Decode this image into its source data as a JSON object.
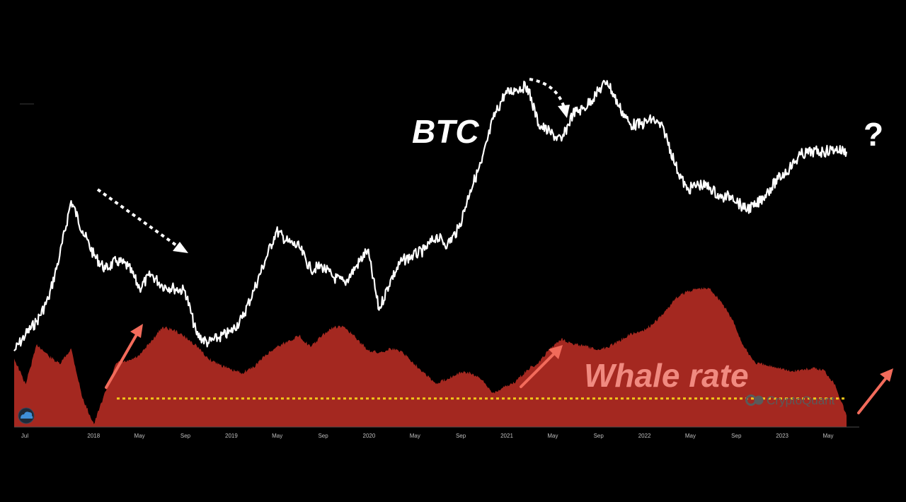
{
  "chart_data": {
    "type": "line",
    "title": "",
    "xlabel": "",
    "ylabel": "",
    "x_tick_labels": [
      "Jul",
      "2018",
      "May",
      "Sep",
      "2019",
      "May",
      "Sep",
      "2020",
      "May",
      "Sep",
      "2021",
      "May",
      "Sep",
      "2022",
      "May",
      "Sep",
      "2023",
      "May"
    ],
    "grid": false,
    "legend": "none",
    "annotations": {
      "btc_label": "BTC",
      "whale_label": "Whale rate",
      "question": "?",
      "watermark": "CryptoQuant"
    },
    "series": [
      {
        "name": "BTC",
        "color": "#ffffff",
        "points": [
          [
            "2017-07",
            0.03
          ],
          [
            "2017-08",
            0.09
          ],
          [
            "2017-09",
            0.14
          ],
          [
            "2017-10",
            0.22
          ],
          [
            "2017-11",
            0.38
          ],
          [
            "2017-12",
            0.58
          ],
          [
            "2018-01",
            0.47
          ],
          [
            "2018-02",
            0.38
          ],
          [
            "2018-03",
            0.33
          ],
          [
            "2018-04",
            0.36
          ],
          [
            "2018-05",
            0.34
          ],
          [
            "2018-06",
            0.26
          ],
          [
            "2018-07",
            0.31
          ],
          [
            "2018-08",
            0.27
          ],
          [
            "2018-09",
            0.26
          ],
          [
            "2018-10",
            0.25
          ],
          [
            "2018-11",
            0.09
          ],
          [
            "2018-12",
            0.06
          ],
          [
            "2019-01",
            0.08
          ],
          [
            "2019-02",
            0.1
          ],
          [
            "2019-03",
            0.15
          ],
          [
            "2019-04",
            0.25
          ],
          [
            "2019-05",
            0.36
          ],
          [
            "2019-06",
            0.47
          ],
          [
            "2019-07",
            0.43
          ],
          [
            "2019-08",
            0.41
          ],
          [
            "2019-09",
            0.33
          ],
          [
            "2019-10",
            0.34
          ],
          [
            "2019-11",
            0.3
          ],
          [
            "2019-12",
            0.28
          ],
          [
            "2020-01",
            0.34
          ],
          [
            "2020-02",
            0.4
          ],
          [
            "2020-03",
            0.18
          ],
          [
            "2020-04",
            0.29
          ],
          [
            "2020-05",
            0.36
          ],
          [
            "2020-06",
            0.38
          ],
          [
            "2020-07",
            0.4
          ],
          [
            "2020-08",
            0.45
          ],
          [
            "2020-09",
            0.42
          ],
          [
            "2020-10",
            0.48
          ],
          [
            "2020-11",
            0.62
          ],
          [
            "2020-12",
            0.72
          ],
          [
            "2021-01",
            0.88
          ],
          [
            "2021-02",
            0.97
          ],
          [
            "2021-03",
            0.99
          ],
          [
            "2021-04",
            1.0
          ],
          [
            "2021-05",
            0.86
          ],
          [
            "2021-06",
            0.83
          ],
          [
            "2021-07",
            0.8
          ],
          [
            "2021-08",
            0.9
          ],
          [
            "2021-09",
            0.92
          ],
          [
            "2021-10",
            0.97
          ],
          [
            "2021-11",
            1.02
          ],
          [
            "2021-12",
            0.93
          ],
          [
            "2022-01",
            0.86
          ],
          [
            "2022-02",
            0.86
          ],
          [
            "2022-03",
            0.88
          ],
          [
            "2022-04",
            0.84
          ],
          [
            "2022-05",
            0.71
          ],
          [
            "2022-06",
            0.62
          ],
          [
            "2022-07",
            0.64
          ],
          [
            "2022-08",
            0.63
          ],
          [
            "2022-09",
            0.59
          ],
          [
            "2022-10",
            0.6
          ],
          [
            "2022-11",
            0.55
          ],
          [
            "2022-12",
            0.56
          ],
          [
            "2023-01",
            0.61
          ],
          [
            "2023-02",
            0.66
          ],
          [
            "2023-03",
            0.7
          ],
          [
            "2023-04",
            0.75
          ],
          [
            "2023-05",
            0.76
          ],
          [
            "2023-06",
            0.76
          ],
          [
            "2023-07",
            0.77
          ],
          [
            "2023-08",
            0.76
          ]
        ]
      },
      {
        "name": "Whale rate",
        "color": "#a42820",
        "points": [
          [
            "2017-07",
            0.48
          ],
          [
            "2017-08",
            0.3
          ],
          [
            "2017-09",
            0.58
          ],
          [
            "2017-10",
            0.5
          ],
          [
            "2017-11",
            0.44
          ],
          [
            "2017-12",
            0.55
          ],
          [
            "2018-01",
            0.2
          ],
          [
            "2018-02",
            0.02
          ],
          [
            "2018-03",
            0.25
          ],
          [
            "2018-04",
            0.45
          ],
          [
            "2018-05",
            0.46
          ],
          [
            "2018-06",
            0.5
          ],
          [
            "2018-07",
            0.6
          ],
          [
            "2018-08",
            0.7
          ],
          [
            "2018-09",
            0.68
          ],
          [
            "2018-10",
            0.63
          ],
          [
            "2018-11",
            0.57
          ],
          [
            "2018-12",
            0.48
          ],
          [
            "2019-01",
            0.44
          ],
          [
            "2019-02",
            0.4
          ],
          [
            "2019-03",
            0.38
          ],
          [
            "2019-04",
            0.42
          ],
          [
            "2019-05",
            0.5
          ],
          [
            "2019-06",
            0.56
          ],
          [
            "2019-07",
            0.6
          ],
          [
            "2019-08",
            0.64
          ],
          [
            "2019-09",
            0.56
          ],
          [
            "2019-10",
            0.64
          ],
          [
            "2019-11",
            0.7
          ],
          [
            "2019-12",
            0.7
          ],
          [
            "2020-01",
            0.62
          ],
          [
            "2020-02",
            0.54
          ],
          [
            "2020-03",
            0.52
          ],
          [
            "2020-04",
            0.55
          ],
          [
            "2020-05",
            0.53
          ],
          [
            "2020-06",
            0.45
          ],
          [
            "2020-07",
            0.38
          ],
          [
            "2020-08",
            0.3
          ],
          [
            "2020-09",
            0.34
          ],
          [
            "2020-10",
            0.38
          ],
          [
            "2020-11",
            0.38
          ],
          [
            "2020-12",
            0.33
          ],
          [
            "2021-01",
            0.24
          ],
          [
            "2021-02",
            0.28
          ],
          [
            "2021-03",
            0.32
          ],
          [
            "2021-04",
            0.4
          ],
          [
            "2021-05",
            0.45
          ],
          [
            "2021-06",
            0.55
          ],
          [
            "2021-07",
            0.62
          ],
          [
            "2021-08",
            0.58
          ],
          [
            "2021-09",
            0.57
          ],
          [
            "2021-10",
            0.54
          ],
          [
            "2021-11",
            0.56
          ],
          [
            "2021-12",
            0.6
          ],
          [
            "2022-01",
            0.65
          ],
          [
            "2022-02",
            0.67
          ],
          [
            "2022-03",
            0.72
          ],
          [
            "2022-04",
            0.8
          ],
          [
            "2022-05",
            0.9
          ],
          [
            "2022-06",
            0.95
          ],
          [
            "2022-07",
            0.97
          ],
          [
            "2022-08",
            0.97
          ],
          [
            "2022-09",
            0.88
          ],
          [
            "2022-10",
            0.75
          ],
          [
            "2022-11",
            0.56
          ],
          [
            "2022-12",
            0.45
          ],
          [
            "2023-01",
            0.43
          ],
          [
            "2023-02",
            0.42
          ],
          [
            "2023-03",
            0.39
          ],
          [
            "2023-04",
            0.4
          ],
          [
            "2023-05",
            0.41
          ],
          [
            "2023-06",
            0.4
          ],
          [
            "2023-07",
            0.3
          ],
          [
            "2023-08",
            0.08
          ]
        ]
      }
    ],
    "threshold_line": {
      "value": 0.2,
      "color": "#f0c419",
      "style": "dotted"
    },
    "arrow_colors": {
      "up": "#f26b5b",
      "down": "#ffffff"
    }
  }
}
